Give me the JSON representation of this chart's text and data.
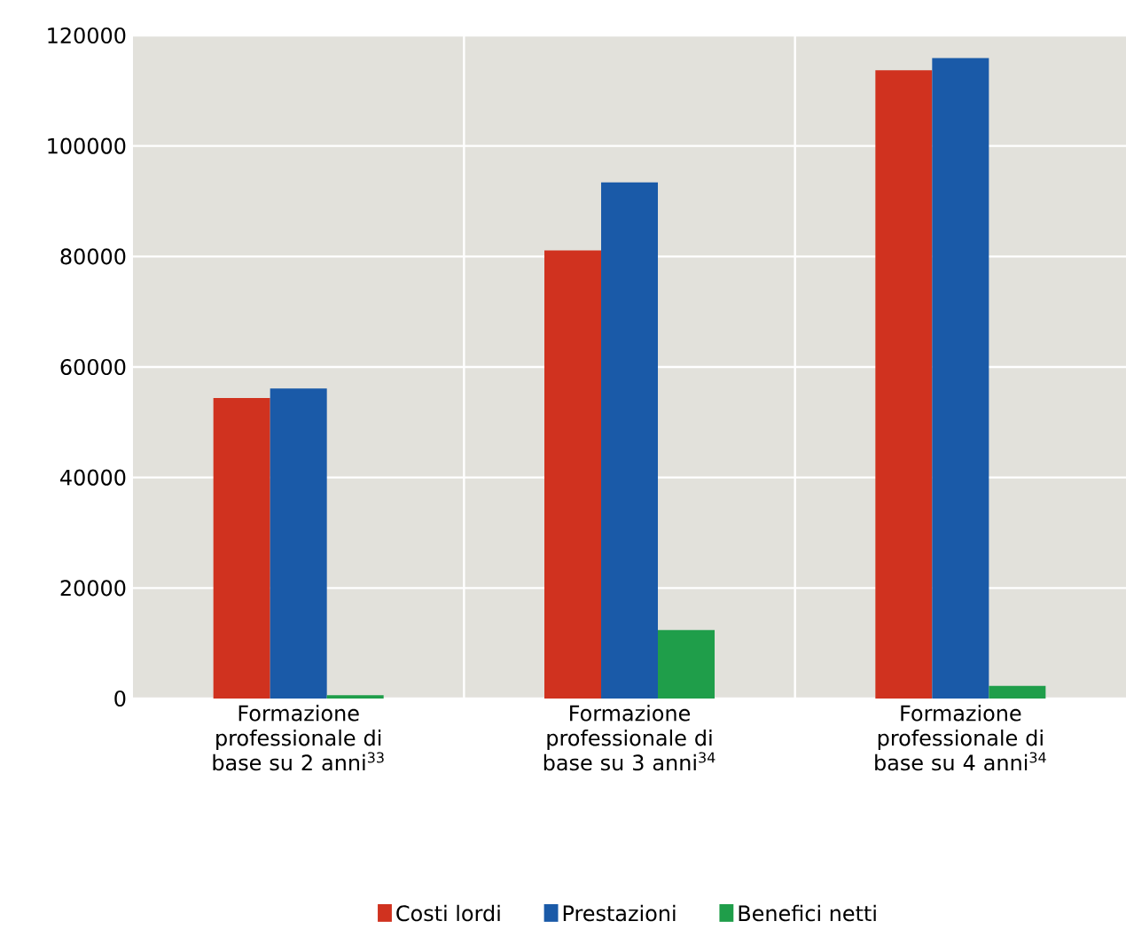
{
  "chart_data": {
    "type": "bar",
    "categories": [
      "Formazione professionale di base su 2 anni$^{33}$",
      "Formazione professionale di base su 3 anni$^{34}$",
      "Formazione professionale di base su 4 anni$^{34}$"
    ],
    "series": [
      {
        "name": "Costi lordi",
        "color": "#d0321f",
        "values": [
          54400,
          81100,
          113700
        ]
      },
      {
        "name": "Prestazioni",
        "color": "#1a5aa8",
        "values": [
          56100,
          93400,
          115900
        ]
      },
      {
        "name": "Benefici netti",
        "color": "#1f9e4a",
        "values": [
          600,
          12400,
          2300
        ]
      }
    ],
    "ylim": [
      0,
      120000
    ],
    "yticks": [
      0,
      20000,
      40000,
      60000,
      80000,
      100000,
      120000
    ],
    "grid": true,
    "legend": "bottom"
  }
}
